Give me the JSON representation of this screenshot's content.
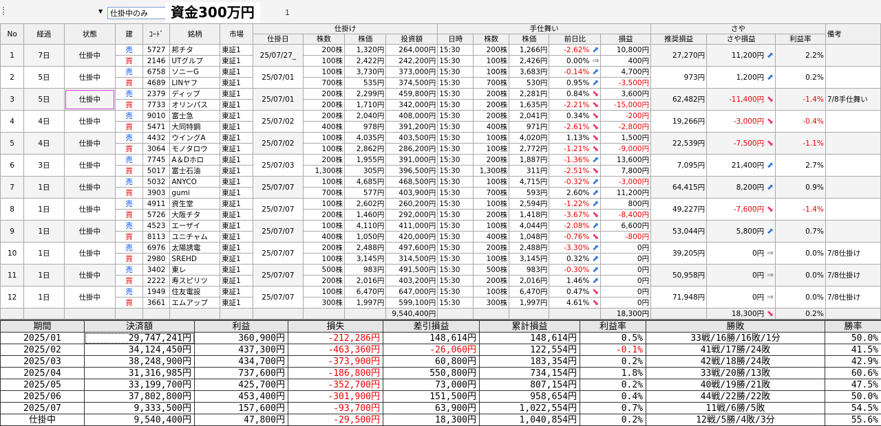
{
  "toolbar": {
    "filter_value": "仕掛中のみ",
    "capital_label": "資金300万円",
    "extra_text": "1"
  },
  "columns": {
    "no": "No",
    "elapsed": "経過",
    "status": "状態",
    "side": "建",
    "code": "ｺｰﾄﾞ",
    "name": "銘柄",
    "market": "市場",
    "open_group": "仕掛け",
    "open_date": "仕掛日",
    "open_qty": "株数",
    "open_price": "株価",
    "investment": "投資額",
    "close_group": "手仕舞い",
    "close_time": "日時",
    "close_qty": "株数",
    "close_price": "株価",
    "prev_change": "前日比",
    "pl": "損益",
    "spread_group": "さや",
    "rec_pl": "推奨損益",
    "spread_pl": "さや損益",
    "ratio": "利益率",
    "note": "備考"
  },
  "rows": [
    {
      "no": "1",
      "elapsed": "7日",
      "status": "仕掛中",
      "date": "25/07/27_",
      "rec": "27,270円",
      "spl": "11,200円",
      "sdir": "up",
      "ratio": "2.2%",
      "note": "",
      "a": {
        "side": "売",
        "code": "5727",
        "name": "邦チタ",
        "market": "東証1",
        "qty": "200株",
        "price": "1,320円",
        "inv": "264,000円",
        "time": "15:30",
        "cqty": "200株",
        "cprice": "1,266円",
        "chg": "-2.62%",
        "dir": "up",
        "pl": "10,800円"
      },
      "b": {
        "side": "買",
        "code": "2146",
        "name": "UTグルプ",
        "market": "東証1",
        "qty": "100株",
        "price": "2,422円",
        "inv": "242,200円",
        "time": "15:30",
        "cqty": "100株",
        "cprice": "2,426円",
        "chg": "0.00%",
        "dir": "flat",
        "pl": "400円"
      }
    },
    {
      "no": "2",
      "elapsed": "5日",
      "status": "仕掛中",
      "date": "25/07/01",
      "rec": "973円",
      "spl": "1,200円",
      "sdir": "up",
      "ratio": "0.2%",
      "note": "",
      "a": {
        "side": "売",
        "code": "6758",
        "name": "ソニーG",
        "market": "東証1",
        "qty": "100株",
        "price": "3,730円",
        "inv": "373,000円",
        "time": "15:30",
        "cqty": "100株",
        "cprice": "3,683円",
        "chg": "-0.14%",
        "dir": "up",
        "pl": "4,700円"
      },
      "b": {
        "side": "買",
        "code": "4689",
        "name": "LINヤフ",
        "market": "東証1",
        "qty": "700株",
        "price": "535円",
        "inv": "374,500円",
        "time": "15:30",
        "cqty": "700株",
        "cprice": "530円",
        "chg": "0.95%",
        "dir": "up",
        "pl": "-3,500円"
      }
    },
    {
      "no": "3",
      "elapsed": "5日",
      "status": "仕掛中",
      "date": "25/07/01",
      "rec": "62,482円",
      "spl": "-11,400円",
      "sdir": "down",
      "ratio": "-1.4%",
      "note": "7/8手仕舞い",
      "a": {
        "side": "売",
        "code": "2379",
        "name": "ディップ",
        "market": "東証1",
        "qty": "200株",
        "price": "2,299円",
        "inv": "459,800円",
        "time": "15:30",
        "cqty": "200株",
        "cprice": "2,281円",
        "chg": "0.84%",
        "dir": "down",
        "pl": "3,600円"
      },
      "b": {
        "side": "買",
        "code": "7733",
        "name": "オリンパス",
        "market": "東証1",
        "qty": "200株",
        "price": "1,710円",
        "inv": "342,000円",
        "time": "15:30",
        "cqty": "200株",
        "cprice": "1,635円",
        "chg": "-2.21%",
        "dir": "down",
        "pl": "-15,000円"
      }
    },
    {
      "no": "4",
      "elapsed": "4日",
      "status": "仕掛中",
      "date": "25/07/02",
      "rec": "19,266円",
      "spl": "-3,000円",
      "sdir": "down",
      "ratio": "-0.4%",
      "note": "",
      "a": {
        "side": "売",
        "code": "9010",
        "name": "富士急",
        "market": "東証1",
        "qty": "200株",
        "price": "2,040円",
        "inv": "408,000円",
        "time": "15:30",
        "cqty": "200株",
        "cprice": "2,041円",
        "chg": "0.34%",
        "dir": "down",
        "pl": "-200円"
      },
      "b": {
        "side": "買",
        "code": "5471",
        "name": "大同特鋼",
        "market": "東証1",
        "qty": "400株",
        "price": "978円",
        "inv": "391,200円",
        "time": "15:30",
        "cqty": "400株",
        "cprice": "971円",
        "chg": "-2.61%",
        "dir": "down",
        "pl": "-2,800円"
      }
    },
    {
      "no": "5",
      "elapsed": "4日",
      "status": "仕掛中",
      "date": "25/07/02",
      "rec": "22,539円",
      "spl": "-7,500円",
      "sdir": "down",
      "ratio": "-1.1%",
      "note": "",
      "a": {
        "side": "売",
        "code": "4432",
        "name": "ウイングA",
        "market": "東証1",
        "qty": "100株",
        "price": "4,035円",
        "inv": "403,500円",
        "time": "15:30",
        "cqty": "100株",
        "cprice": "4,020円",
        "chg": "1.13%",
        "dir": "down",
        "pl": "1,500円"
      },
      "b": {
        "side": "買",
        "code": "3064",
        "name": "モノタロウ",
        "market": "東証1",
        "qty": "100株",
        "price": "2,862円",
        "inv": "286,200円",
        "time": "15:30",
        "cqty": "100株",
        "cprice": "2,772円",
        "chg": "-1.21%",
        "dir": "down",
        "pl": "-9,000円"
      }
    },
    {
      "no": "6",
      "elapsed": "3日",
      "status": "仕掛中",
      "date": "25/07/03",
      "rec": "7,095円",
      "spl": "21,400円",
      "sdir": "up",
      "ratio": "2.7%",
      "note": "",
      "a": {
        "side": "売",
        "code": "7745",
        "name": "A＆Dホロ",
        "market": "東証1",
        "qty": "200株",
        "price": "1,955円",
        "inv": "391,000円",
        "time": "15:30",
        "cqty": "200株",
        "cprice": "1,887円",
        "chg": "-1.36%",
        "dir": "up",
        "pl": "13,600円"
      },
      "b": {
        "side": "買",
        "code": "5017",
        "name": "富士石油",
        "market": "東証1",
        "qty": "1,300株",
        "price": "305円",
        "inv": "396,500円",
        "time": "15:30",
        "cqty": "1,300株",
        "cprice": "311円",
        "chg": "-2.51%",
        "dir": "down",
        "pl": "7,800円"
      }
    },
    {
      "no": "7",
      "elapsed": "1日",
      "status": "仕掛中",
      "date": "25/07/07",
      "rec": "64,415円",
      "spl": "8,200円",
      "sdir": "up",
      "ratio": "0.9%",
      "note": "",
      "a": {
        "side": "売",
        "code": "5032",
        "name": "ANYCO",
        "market": "東証1",
        "qty": "100株",
        "price": "4,685円",
        "inv": "468,500円",
        "time": "15:30",
        "cqty": "100株",
        "cprice": "4,715円",
        "chg": "-0.32%",
        "dir": "up",
        "pl": "-3,000円"
      },
      "b": {
        "side": "買",
        "code": "3903",
        "name": "gumi",
        "market": "東証1",
        "qty": "700株",
        "price": "577円",
        "inv": "403,900円",
        "time": "15:30",
        "cqty": "700株",
        "cprice": "593円",
        "chg": "2.60%",
        "dir": "up",
        "pl": "11,200円"
      }
    },
    {
      "no": "8",
      "elapsed": "1日",
      "status": "仕掛中",
      "date": "25/07/07",
      "rec": "49,227円",
      "spl": "-7,600円",
      "sdir": "down",
      "ratio": "-1.4%",
      "note": "",
      "a": {
        "side": "売",
        "code": "4911",
        "name": "資生堂",
        "market": "東証1",
        "qty": "100株",
        "price": "2,602円",
        "inv": "260,200円",
        "time": "15:30",
        "cqty": "100株",
        "cprice": "2,594円",
        "chg": "-1.22%",
        "dir": "up",
        "pl": "800円"
      },
      "b": {
        "side": "買",
        "code": "5726",
        "name": "大阪チタ",
        "market": "東証1",
        "qty": "200株",
        "price": "1,460円",
        "inv": "292,000円",
        "time": "15:30",
        "cqty": "200株",
        "cprice": "1,418円",
        "chg": "-3.67%",
        "dir": "down",
        "pl": "-8,400円"
      }
    },
    {
      "no": "9",
      "elapsed": "1日",
      "status": "仕掛中",
      "date": "25/07/07",
      "rec": "53,044円",
      "spl": "5,800円",
      "sdir": "up",
      "ratio": "0.7%",
      "note": "",
      "a": {
        "side": "売",
        "code": "4523",
        "name": "エーザイ",
        "market": "東証1",
        "qty": "100株",
        "price": "4,110円",
        "inv": "411,000円",
        "time": "15:30",
        "cqty": "100株",
        "cprice": "4,044円",
        "chg": "-2.08%",
        "dir": "up",
        "pl": "6,600円"
      },
      "b": {
        "side": "買",
        "code": "8113",
        "name": "ユニチャム",
        "market": "東証1",
        "qty": "400株",
        "price": "1,050円",
        "inv": "420,000円",
        "time": "15:30",
        "cqty": "400株",
        "cprice": "1,048円",
        "chg": "-0.76%",
        "dir": "down",
        "pl": "-800円"
      }
    },
    {
      "no": "10",
      "elapsed": "1日",
      "status": "仕掛中",
      "date": "25/07/07",
      "rec": "39,205円",
      "spl": "0円",
      "sdir": "flat",
      "ratio": "0.0%",
      "note": "7/8仕掛け",
      "a": {
        "side": "売",
        "code": "6976",
        "name": "太陽誘電",
        "market": "東証1",
        "qty": "200株",
        "price": "2,488円",
        "inv": "497,600円",
        "time": "15:30",
        "cqty": "200株",
        "cprice": "2,488円",
        "chg": "-3.30%",
        "dir": "up",
        "pl": "0円"
      },
      "b": {
        "side": "買",
        "code": "2980",
        "name": "SREHD",
        "market": "東証1",
        "qty": "100株",
        "price": "3,145円",
        "inv": "314,500円",
        "time": "15:30",
        "cqty": "100株",
        "cprice": "3,145円",
        "chg": "0.32%",
        "dir": "up",
        "pl": "0円"
      }
    },
    {
      "no": "11",
      "elapsed": "1日",
      "status": "仕掛中",
      "date": "25/07/07",
      "rec": "50,958円",
      "spl": "0円",
      "sdir": "flat",
      "ratio": "0.0%",
      "note": "7/8仕掛け",
      "a": {
        "side": "売",
        "code": "3402",
        "name": "東レ",
        "market": "東証1",
        "qty": "500株",
        "price": "983円",
        "inv": "491,500円",
        "time": "15:30",
        "cqty": "500株",
        "cprice": "983円",
        "chg": "-0.30%",
        "dir": "up",
        "pl": "0円"
      },
      "b": {
        "side": "買",
        "code": "2222",
        "name": "寿スピリツ",
        "market": "東証1",
        "qty": "200株",
        "price": "2,016円",
        "inv": "403,200円",
        "time": "15:30",
        "cqty": "200株",
        "cprice": "2,016円",
        "chg": "1.46%",
        "dir": "up",
        "pl": "0円"
      }
    },
    {
      "no": "12",
      "elapsed": "1日",
      "status": "仕掛中",
      "date": "25/07/07",
      "rec": "71,948円",
      "spl": "0円",
      "sdir": "flat",
      "ratio": "0.0%",
      "note": "7/8仕掛け",
      "a": {
        "side": "売",
        "code": "1949",
        "name": "住友電設",
        "market": "東証1",
        "qty": "100株",
        "price": "6,470円",
        "inv": "647,000円",
        "time": "15:30",
        "cqty": "100株",
        "cprice": "6,470円",
        "chg": "0.47%",
        "dir": "down",
        "pl": "0円"
      },
      "b": {
        "side": "買",
        "code": "3661",
        "name": "エムアップ",
        "market": "東証1",
        "qty": "300株",
        "price": "1,997円",
        "inv": "599,100円",
        "time": "15:30",
        "cqty": "300株",
        "cprice": "1,997円",
        "chg": "4.61%",
        "dir": "down",
        "pl": "0円"
      }
    }
  ],
  "totals": {
    "investment": "9,540,400円",
    "pl": "18,300円",
    "spread_pl": "18,300円",
    "ratio": "0.2%"
  },
  "summary": {
    "headers": [
      "期間",
      "決済額",
      "利益",
      "損失",
      "差引損益",
      "累計損益",
      "利益率",
      "勝敗",
      "勝率"
    ],
    "rows": [
      [
        "2025/01",
        "29,747,241円",
        "360,900円",
        "-212,286円",
        "148,614円",
        "148,614円",
        "0.5%",
        "33戦/16勝/16敗/1分",
        "50.0%"
      ],
      [
        "2025/02",
        "34,124,450円",
        "437,300円",
        "-463,360円",
        "-26,060円",
        "122,554円",
        "-0.1%",
        "41戦/17勝/24敗",
        "41.5%"
      ],
      [
        "2025/03",
        "38,248,900円",
        "434,700円",
        "-373,900円",
        "60,800円",
        "183,354円",
        "0.2%",
        "42戦/18勝/24敗",
        "42.9%"
      ],
      [
        "2025/04",
        "31,316,985円",
        "737,600円",
        "-186,800円",
        "550,800円",
        "734,154円",
        "1.8%",
        "33戦/20勝/13敗",
        "60.6%"
      ],
      [
        "2025/05",
        "33,199,700円",
        "425,700円",
        "-352,700円",
        "73,000円",
        "807,154円",
        "0.2%",
        "40戦/19勝/21敗",
        "47.5%"
      ],
      [
        "2025/06",
        "37,802,800円",
        "453,400円",
        "-301,900円",
        "151,500円",
        "958,654円",
        "0.4%",
        "44戦/22勝/22敗",
        "50.0%"
      ],
      [
        "2025/07",
        "9,333,500円",
        "157,600円",
        "-93,700円",
        "63,900円",
        "1,022,554円",
        "0.7%",
        "11戦/6勝/5敗",
        "54.5%"
      ],
      [
        "仕掛中",
        "9,540,400円",
        "47,800円",
        "-29,500円",
        "18,300円",
        "1,040,854円",
        "0.2%",
        "12戦/5勝/4敗/3分",
        "55.6%"
      ]
    ]
  },
  "colors": {
    "sell": "#0050ff",
    "buy": "#e00000",
    "negative": "#e00000",
    "arrow_up": "#3a7bd5",
    "arrow_down": "#e83a6a",
    "selection": "#d040d0"
  },
  "icons": {
    "up": "arrow-up-right-icon",
    "down": "arrow-down-right-icon",
    "flat": "arrow-right-icon"
  }
}
